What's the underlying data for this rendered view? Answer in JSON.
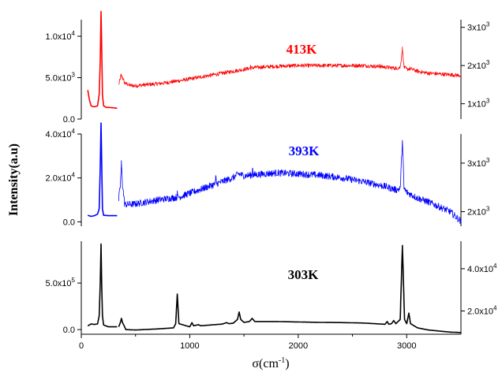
{
  "chart_data": {
    "type": "line",
    "ylabel": "Intensity(a.u)",
    "xlabel": "σ(cm",
    "xlabel_sup": "-1",
    "xlabel_tail": ")",
    "xlim": [
      0,
      3500
    ],
    "x_ticks": [
      0,
      1000,
      2000,
      3000
    ],
    "x_tick_labels": [
      "0",
      "1000",
      "2000",
      "3000"
    ],
    "panels": [
      {
        "name": "413K",
        "color": "#ff0000",
        "left_axis": {
          "ylim": [
            0,
            12000
          ],
          "ticks": [
            0,
            5000,
            10000
          ],
          "tick_labels": [
            {
              "m": "0.0",
              "e": ""
            },
            {
              "m": "5.0x10",
              "e": "3"
            },
            {
              "m": "1.0x10",
              "e": "4"
            }
          ]
        },
        "right_axis": {
          "ylim": [
            600,
            3200
          ],
          "ticks": [
            1000,
            2000,
            3000
          ],
          "tick_labels": [
            {
              "m": "1x10",
              "e": "3"
            },
            {
              "m": "2x10",
              "e": "3"
            },
            {
              "m": "3x10",
              "e": "3"
            }
          ]
        },
        "low_segment": [
          [
            60,
            3500
          ],
          [
            75,
            2300
          ],
          [
            90,
            1600
          ],
          [
            110,
            1500
          ],
          [
            130,
            1500
          ],
          [
            150,
            1600
          ],
          [
            165,
            3000
          ],
          [
            175,
            7000
          ],
          [
            182,
            13000
          ],
          [
            188,
            9000
          ],
          [
            195,
            3000
          ],
          [
            205,
            1600
          ],
          [
            230,
            1400
          ],
          [
            260,
            1400
          ],
          [
            300,
            1350
          ],
          [
            330,
            1300
          ]
        ],
        "high_segment": [
          [
            345,
            1500
          ],
          [
            355,
            1600
          ],
          [
            365,
            1750
          ],
          [
            380,
            1680
          ],
          [
            400,
            1540
          ],
          [
            450,
            1480
          ],
          [
            500,
            1470
          ],
          [
            600,
            1500
          ],
          [
            700,
            1520
          ],
          [
            800,
            1560
          ],
          [
            900,
            1600
          ],
          [
            1000,
            1650
          ],
          [
            1100,
            1700
          ],
          [
            1200,
            1750
          ],
          [
            1300,
            1800
          ],
          [
            1400,
            1850
          ],
          [
            1500,
            1900
          ],
          [
            1600,
            1950
          ],
          [
            1800,
            1980
          ],
          [
            2000,
            2000
          ],
          [
            2200,
            2000
          ],
          [
            2400,
            2000
          ],
          [
            2600,
            2000
          ],
          [
            2800,
            1960
          ],
          [
            2900,
            1930
          ],
          [
            2940,
            1950
          ],
          [
            2960,
            2450
          ],
          [
            2975,
            1960
          ],
          [
            3000,
            1900
          ],
          [
            3030,
            1920
          ],
          [
            3100,
            1850
          ],
          [
            3200,
            1800
          ],
          [
            3300,
            1780
          ],
          [
            3400,
            1760
          ],
          [
            3500,
            1740
          ]
        ],
        "noise_amplitude": 50,
        "spikes": [
          [
            1560,
            80
          ],
          [
            2750,
            70
          ]
        ]
      },
      {
        "name": "393K",
        "color": "#0000ff",
        "left_axis": {
          "ylim": [
            -2000,
            40000
          ],
          "ticks": [
            0,
            20000,
            40000
          ],
          "tick_labels": [
            {
              "m": "0.0",
              "e": ""
            },
            {
              "m": "2.0x10",
              "e": "4"
            },
            {
              "m": "4.0x10",
              "e": "4"
            }
          ]
        },
        "right_axis": {
          "ylim": [
            1700,
            3600
          ],
          "ticks": [
            2000,
            3000
          ],
          "tick_labels": [
            {
              "m": "2x10",
              "e": "3"
            },
            {
              "m": "3x10",
              "e": "3"
            }
          ]
        },
        "low_segment": [
          [
            60,
            3000
          ],
          [
            90,
            2500
          ],
          [
            120,
            2800
          ],
          [
            150,
            3500
          ],
          [
            165,
            6000
          ],
          [
            175,
            25000
          ],
          [
            182,
            45000
          ],
          [
            188,
            28000
          ],
          [
            195,
            6000
          ],
          [
            205,
            3000
          ],
          [
            250,
            2800
          ],
          [
            330,
            2800
          ]
        ],
        "high_segment": [
          [
            345,
            2250
          ],
          [
            360,
            2550
          ],
          [
            370,
            3000
          ],
          [
            380,
            2550
          ],
          [
            400,
            2150
          ],
          [
            450,
            2150
          ],
          [
            500,
            2160
          ],
          [
            600,
            2200
          ],
          [
            700,
            2240
          ],
          [
            800,
            2270
          ],
          [
            900,
            2300
          ],
          [
            1000,
            2380
          ],
          [
            1100,
            2460
          ],
          [
            1200,
            2540
          ],
          [
            1300,
            2620
          ],
          [
            1400,
            2700
          ],
          [
            1450,
            2780
          ],
          [
            1500,
            2740
          ],
          [
            1600,
            2760
          ],
          [
            1800,
            2800
          ],
          [
            2000,
            2780
          ],
          [
            2200,
            2750
          ],
          [
            2400,
            2700
          ],
          [
            2600,
            2620
          ],
          [
            2800,
            2520
          ],
          [
            2900,
            2450
          ],
          [
            2940,
            2470
          ],
          [
            2960,
            3480
          ],
          [
            2975,
            2480
          ],
          [
            3000,
            2400
          ],
          [
            3100,
            2280
          ],
          [
            3200,
            2200
          ],
          [
            3300,
            2100
          ],
          [
            3400,
            2000
          ],
          [
            3500,
            1800
          ]
        ],
        "noise_amplitude": 70,
        "spikes": [
          [
            885,
            200
          ],
          [
            1580,
            160
          ],
          [
            1240,
            120
          ]
        ]
      },
      {
        "name": "303K",
        "color": "#000000",
        "left_axis": {
          "ylim": [
            -50000,
            950000
          ],
          "ticks": [
            0,
            500000
          ],
          "tick_labels": [
            {
              "m": "0.0",
              "e": ""
            },
            {
              "m": "5.0x10",
              "e": "5"
            }
          ]
        },
        "right_axis": {
          "ylim": [
            9000,
            53000
          ],
          "ticks": [
            20000,
            40000
          ],
          "tick_labels": [
            {
              "m": "2.0x10",
              "e": "4"
            },
            {
              "m": "4.0x10",
              "e": "4"
            }
          ]
        },
        "low_segment": [
          [
            60,
            40000
          ],
          [
            90,
            60000
          ],
          [
            120,
            55000
          ],
          [
            150,
            60000
          ],
          [
            165,
            150000
          ],
          [
            175,
            500000
          ],
          [
            182,
            920000
          ],
          [
            188,
            500000
          ],
          [
            195,
            150000
          ],
          [
            205,
            50000
          ],
          [
            250,
            30000
          ],
          [
            330,
            30000
          ]
        ],
        "high_segment": [
          [
            345,
            12500
          ],
          [
            360,
            14500
          ],
          [
            370,
            16500
          ],
          [
            380,
            14500
          ],
          [
            395,
            13000
          ],
          [
            410,
            11200
          ],
          [
            500,
            11000
          ],
          [
            700,
            11500
          ],
          [
            850,
            12000
          ],
          [
            870,
            14000
          ],
          [
            885,
            28000
          ],
          [
            900,
            14000
          ],
          [
            1000,
            12500
          ],
          [
            1020,
            14500
          ],
          [
            1035,
            13000
          ],
          [
            1080,
            13500
          ],
          [
            1100,
            13000
          ],
          [
            1300,
            13800
          ],
          [
            1340,
            14500
          ],
          [
            1360,
            14000
          ],
          [
            1400,
            14200
          ],
          [
            1440,
            16000
          ],
          [
            1455,
            19500
          ],
          [
            1470,
            16000
          ],
          [
            1500,
            14600
          ],
          [
            1550,
            15000
          ],
          [
            1575,
            16500
          ],
          [
            1600,
            15000
          ],
          [
            1800,
            15000
          ],
          [
            2000,
            14800
          ],
          [
            2200,
            14600
          ],
          [
            2400,
            14500
          ],
          [
            2600,
            14300
          ],
          [
            2800,
            13700
          ],
          [
            2820,
            15000
          ],
          [
            2835,
            13700
          ],
          [
            2860,
            14000
          ],
          [
            2880,
            15500
          ],
          [
            2900,
            14000
          ],
          [
            2940,
            16000
          ],
          [
            2960,
            51000
          ],
          [
            2980,
            16000
          ],
          [
            3000,
            14000
          ],
          [
            3020,
            19000
          ],
          [
            3035,
            14000
          ],
          [
            3100,
            12000
          ],
          [
            3200,
            11000
          ],
          [
            3300,
            10500
          ],
          [
            3400,
            10000
          ],
          [
            3500,
            9800
          ]
        ],
        "noise_amplitude": 0,
        "spikes": []
      }
    ]
  }
}
